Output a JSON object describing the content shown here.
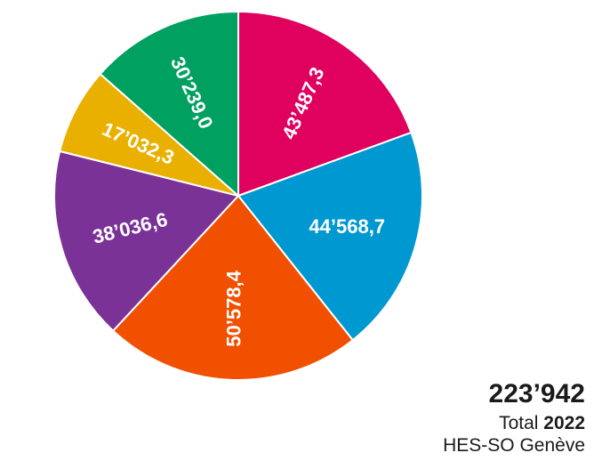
{
  "chart_data": {
    "type": "pie",
    "total": "223’942",
    "total_caption": "Total",
    "year": "2022",
    "institution": "HES-SO Genève",
    "slices": [
      {
        "label": "43’487,3",
        "value": 43487.3,
        "color": "#E0005E"
      },
      {
        "label": "44’568,7",
        "value": 44568.7,
        "color": "#0098D0"
      },
      {
        "label": "50’578,4",
        "value": 50578.4,
        "color": "#F05000"
      },
      {
        "label": "38’036,6",
        "value": 38036.6,
        "color": "#7B3296"
      },
      {
        "label": "17’032,3",
        "value": 17032.3,
        "color": "#E9B000"
      },
      {
        "label": "30’239,0",
        "value": 30239.0,
        "color": "#00A060"
      }
    ]
  }
}
